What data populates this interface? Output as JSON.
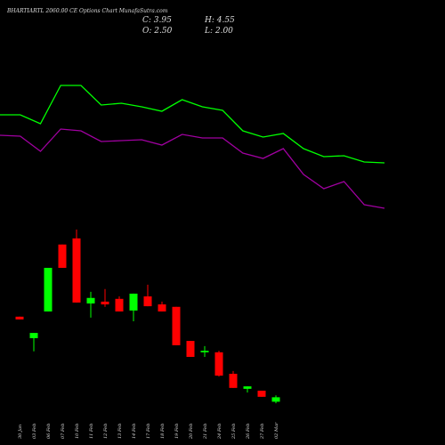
{
  "chart_data": [
    {
      "type": "candlestick",
      "title": "BHARTIARTL 2060.00 CE Options Chart MunafaSutra.com",
      "info": [
        "C: 3.95",
        "H: 4.55",
        "O: 2.50",
        "L: 2.00"
      ],
      "categories": [
        "30 Jan",
        "03 Feb",
        "06 Feb",
        "07 Feb",
        "10 Feb",
        "11 Feb",
        "12 Feb",
        "13 Feb",
        "14 Feb",
        "17 Feb",
        "18 Feb",
        "19 Feb",
        "20 Feb",
        "21 Feb",
        "24 Feb",
        "25 Feb",
        "26 Feb",
        "27 Feb",
        "02 Mar"
      ],
      "open": [
        30.2,
        23.2,
        31.9,
        53.7,
        55.7,
        34.5,
        35.1,
        36.0,
        32.2,
        36.8,
        34.2,
        33.4,
        22.3,
        18.6,
        18.6,
        11.6,
        6.7,
        6.1,
        2.5
      ],
      "high": [
        30.2,
        24.9,
        46.1,
        53.7,
        58.6,
        38.3,
        39.2,
        36.8,
        37.7,
        40.6,
        35.1,
        33.4,
        22.3,
        20.6,
        19.1,
        12.5,
        7.5,
        6.1,
        4.55
      ],
      "low": [
        29.3,
        18.9,
        31.9,
        46.1,
        34.8,
        29.9,
        33.4,
        31.9,
        28.7,
        33.6,
        31.9,
        20.9,
        17.1,
        17.1,
        10.7,
        7.0,
        5.5,
        4.1,
        2.0
      ],
      "close": [
        29.3,
        24.9,
        46.1,
        46.1,
        34.8,
        36.3,
        34.2,
        31.9,
        37.7,
        33.6,
        31.9,
        20.9,
        17.1,
        19.1,
        11.0,
        7.0,
        7.5,
        4.1,
        3.95
      ],
      "up_color": "#00ff00",
      "down_color": "#ff0000",
      "ylim": [
        0,
        60
      ]
    },
    {
      "type": "line",
      "series": [
        {
          "color": "#00ff00",
          "values": [
            71,
            71,
            61,
            104,
            104,
            82,
            84,
            80,
            75,
            88,
            80,
            76,
            53,
            46,
            50,
            33,
            24,
            25,
            18,
            17
          ]
        },
        {
          "color": "#a000a0",
          "values": [
            48,
            47,
            30,
            55,
            53,
            41,
            42,
            43,
            37,
            49,
            45,
            45,
            28,
            22,
            33,
            4,
            -12,
            -4,
            -30,
            -34
          ]
        }
      ],
      "ylim": [
        -60,
        120
      ]
    }
  ]
}
